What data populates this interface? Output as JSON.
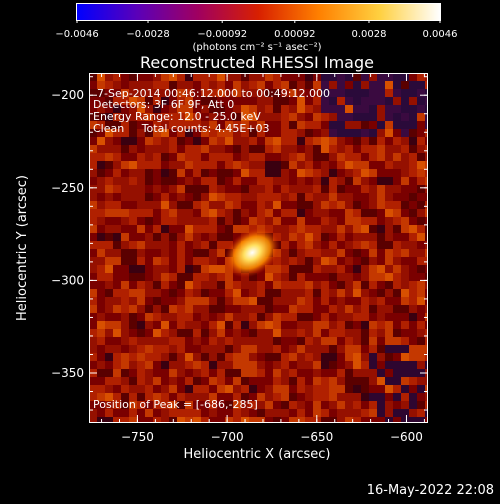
{
  "chart_data": {
    "type": "heatmap",
    "title": "Reconstructed RHESSI Image",
    "xlabel": "Heliocentric X (arcsec)",
    "ylabel": "Heliocentric Y (arcsec)",
    "xlim": [
      -777,
      -588
    ],
    "ylim": [
      -377,
      -188
    ],
    "xticks": [
      -750,
      -700,
      -650,
      -600
    ],
    "yticks": [
      -200,
      -250,
      -300,
      -350
    ],
    "xtick_labels": [
      "−750",
      "−700",
      "−650",
      "−600"
    ],
    "ytick_labels": [
      "−200",
      "−250",
      "−300",
      "−350"
    ],
    "colorbar": {
      "range": [
        -0.0046,
        0.0046
      ],
      "tick_values": [
        -0.0046,
        -0.0028,
        -0.00092,
        0.00092,
        0.0028,
        0.0046
      ],
      "tick_labels": [
        "−0.0046",
        "−0.0028",
        "−0.00092",
        "0.00092",
        "0.0028",
        "0.0046"
      ],
      "unit_label": "(photons cm⁻² s⁻¹ asec⁻²)",
      "colormap": [
        "#0000ff",
        "#5b00b8",
        "#a00060",
        "#d82000",
        "#ff8000",
        "#ffd040",
        "#ffffff"
      ]
    },
    "annotations": [
      "7-Sep-2014 00:46:12.000 to 00:49:12.000",
      "Detectors: 3F 6F 9F, Att 0",
      "Energy Range: 12.0 - 25.0 keV",
      "Clean     Total counts: 4.45E+03"
    ],
    "peak_label": "Position of Peak = [-686,-285]",
    "peak_position": [
      -686,
      -285
    ],
    "footer_date": "16-May-2022 22:08"
  }
}
